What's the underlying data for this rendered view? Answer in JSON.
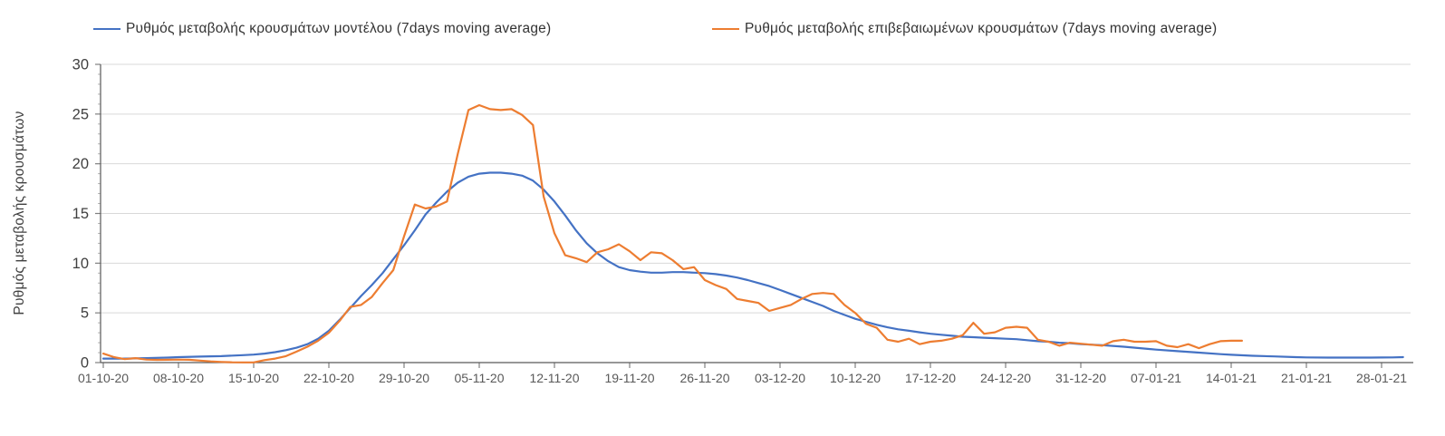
{
  "legend": {
    "items": [
      {
        "label": "Ρυθμός μεταβολής κρουσμάτων μοντέλου (7days moving average)",
        "color": "#4472C4"
      },
      {
        "label": "Ρυθμός μεταβολής επιβεβαιωμένων κρουσμάτων (7days moving average)",
        "color": "#ED7D31"
      }
    ]
  },
  "y_axis_title": "Ρυθμός μεταβολής κρουσμάτων",
  "colors": {
    "model_line": "#4472C4",
    "confirmed_line": "#ED7D31",
    "gridline": "#D9D9D9",
    "axis": "#595959",
    "tick": "#808080",
    "minor_tick": "#B3B3B3",
    "y_tick_label": "#404040",
    "x_tick_label": "#595959",
    "background": "#FFFFFF"
  },
  "chart_data": {
    "type": "line",
    "title": "",
    "xlabel": "",
    "ylabel": "Ρυθμός μεταβολής κρουσμάτων",
    "x_unit": "days since 01-10-20 (daily points, 7-day moving average)",
    "x_tick_days": [
      0,
      7,
      14,
      21,
      28,
      35,
      42,
      49,
      56,
      63,
      70,
      77,
      84,
      91,
      98,
      105,
      112,
      119
    ],
    "x_tick_labels": [
      "01-10-20",
      "08-10-20",
      "15-10-20",
      "22-10-20",
      "29-10-20",
      "05-11-20",
      "12-11-20",
      "19-11-20",
      "26-11-20",
      "03-12-20",
      "10-12-20",
      "17-12-20",
      "24-12-20",
      "31-12-20",
      "07-01-21",
      "14-01-21",
      "21-01-21",
      "28-01-21"
    ],
    "xlim_days": [
      0,
      122
    ],
    "ylim": [
      0,
      30
    ],
    "y_ticks": [
      0,
      5,
      10,
      15,
      20,
      25,
      30
    ],
    "y_minor_tick_step": 1,
    "grid": "horizontal-only",
    "legend_position": "top",
    "series": [
      {
        "name": "Ρυθμός μεταβολής κρουσμάτων μοντέλου (7days moving average)",
        "color": "#4472C4",
        "points": [
          [
            0,
            0.4
          ],
          [
            2,
            0.4
          ],
          [
            4,
            0.45
          ],
          [
            6,
            0.5
          ],
          [
            7,
            0.55
          ],
          [
            9,
            0.6
          ],
          [
            11,
            0.65
          ],
          [
            13,
            0.75
          ],
          [
            14,
            0.8
          ],
          [
            15,
            0.9
          ],
          [
            16,
            1.05
          ],
          [
            17,
            1.25
          ],
          [
            18,
            1.5
          ],
          [
            19,
            1.85
          ],
          [
            20,
            2.4
          ],
          [
            21,
            3.2
          ],
          [
            22,
            4.3
          ],
          [
            23,
            5.5
          ],
          [
            24,
            6.7
          ],
          [
            25,
            7.8
          ],
          [
            26,
            9.0
          ],
          [
            27,
            10.4
          ],
          [
            28,
            11.8
          ],
          [
            29,
            13.3
          ],
          [
            30,
            14.9
          ],
          [
            31,
            16.1
          ],
          [
            32,
            17.2
          ],
          [
            33,
            18.1
          ],
          [
            34,
            18.7
          ],
          [
            35,
            19.0
          ],
          [
            36,
            19.1
          ],
          [
            37,
            19.1
          ],
          [
            38,
            19.0
          ],
          [
            39,
            18.8
          ],
          [
            40,
            18.3
          ],
          [
            41,
            17.4
          ],
          [
            42,
            16.2
          ],
          [
            43,
            14.8
          ],
          [
            44,
            13.3
          ],
          [
            45,
            12.0
          ],
          [
            46,
            11.0
          ],
          [
            47,
            10.2
          ],
          [
            48,
            9.6
          ],
          [
            49,
            9.3
          ],
          [
            50,
            9.15
          ],
          [
            51,
            9.05
          ],
          [
            52,
            9.05
          ],
          [
            53,
            9.1
          ],
          [
            54,
            9.1
          ],
          [
            55,
            9.05
          ],
          [
            56,
            9.0
          ],
          [
            57,
            8.9
          ],
          [
            58,
            8.75
          ],
          [
            59,
            8.55
          ],
          [
            60,
            8.3
          ],
          [
            61,
            8.0
          ],
          [
            62,
            7.7
          ],
          [
            63,
            7.3
          ],
          [
            64,
            6.9
          ],
          [
            65,
            6.5
          ],
          [
            66,
            6.1
          ],
          [
            67,
            5.7
          ],
          [
            68,
            5.2
          ],
          [
            69,
            4.8
          ],
          [
            70,
            4.4
          ],
          [
            71,
            4.1
          ],
          [
            72,
            3.8
          ],
          [
            73,
            3.55
          ],
          [
            74,
            3.35
          ],
          [
            75,
            3.2
          ],
          [
            76,
            3.05
          ],
          [
            77,
            2.9
          ],
          [
            78,
            2.8
          ],
          [
            79,
            2.7
          ],
          [
            80,
            2.6
          ],
          [
            81,
            2.55
          ],
          [
            82,
            2.5
          ],
          [
            83,
            2.45
          ],
          [
            84,
            2.4
          ],
          [
            85,
            2.35
          ],
          [
            86,
            2.25
          ],
          [
            87,
            2.15
          ],
          [
            88,
            2.1
          ],
          [
            89,
            2.0
          ],
          [
            90,
            1.95
          ],
          [
            91,
            1.85
          ],
          [
            93,
            1.75
          ],
          [
            95,
            1.6
          ],
          [
            97,
            1.4
          ],
          [
            98,
            1.3
          ],
          [
            100,
            1.15
          ],
          [
            102,
            1.0
          ],
          [
            104,
            0.85
          ],
          [
            105,
            0.78
          ],
          [
            107,
            0.68
          ],
          [
            109,
            0.62
          ],
          [
            111,
            0.55
          ],
          [
            112,
            0.52
          ],
          [
            114,
            0.5
          ],
          [
            116,
            0.5
          ],
          [
            118,
            0.5
          ],
          [
            120,
            0.52
          ],
          [
            121,
            0.55
          ]
        ]
      },
      {
        "name": "Ρυθμός μεταβολής επιβεβαιωμένων κρουσμάτων (7days moving average)",
        "color": "#ED7D31",
        "points": [
          [
            0,
            0.9
          ],
          [
            1,
            0.55
          ],
          [
            2,
            0.35
          ],
          [
            3,
            0.45
          ],
          [
            4,
            0.3
          ],
          [
            5,
            0.27
          ],
          [
            6,
            0.28
          ],
          [
            7,
            0.3
          ],
          [
            8,
            0.28
          ],
          [
            9,
            0.2
          ],
          [
            10,
            0.12
          ],
          [
            11,
            0.06
          ],
          [
            12,
            0.03
          ],
          [
            13,
            0.02
          ],
          [
            14,
            0.02
          ],
          [
            15,
            0.25
          ],
          [
            16,
            0.4
          ],
          [
            17,
            0.65
          ],
          [
            18,
            1.1
          ],
          [
            19,
            1.6
          ],
          [
            20,
            2.2
          ],
          [
            21,
            3.0
          ],
          [
            22,
            4.2
          ],
          [
            23,
            5.6
          ],
          [
            24,
            5.8
          ],
          [
            25,
            6.6
          ],
          [
            26,
            8.0
          ],
          [
            27,
            9.3
          ],
          [
            28,
            12.7
          ],
          [
            29,
            15.9
          ],
          [
            30,
            15.5
          ],
          [
            31,
            15.7
          ],
          [
            32,
            16.2
          ],
          [
            33,
            21.0
          ],
          [
            34,
            25.4
          ],
          [
            35,
            25.9
          ],
          [
            36,
            25.5
          ],
          [
            37,
            25.4
          ],
          [
            38,
            25.5
          ],
          [
            39,
            24.9
          ],
          [
            40,
            23.9
          ],
          [
            41,
            16.7
          ],
          [
            42,
            13.0
          ],
          [
            43,
            10.8
          ],
          [
            44,
            10.5
          ],
          [
            45,
            10.1
          ],
          [
            46,
            11.1
          ],
          [
            47,
            11.4
          ],
          [
            48,
            11.9
          ],
          [
            49,
            11.2
          ],
          [
            50,
            10.3
          ],
          [
            51,
            11.1
          ],
          [
            52,
            11.0
          ],
          [
            53,
            10.3
          ],
          [
            54,
            9.4
          ],
          [
            55,
            9.6
          ],
          [
            56,
            8.3
          ],
          [
            57,
            7.8
          ],
          [
            58,
            7.4
          ],
          [
            59,
            6.4
          ],
          [
            60,
            6.2
          ],
          [
            61,
            6.0
          ],
          [
            62,
            5.2
          ],
          [
            63,
            5.5
          ],
          [
            64,
            5.8
          ],
          [
            65,
            6.4
          ],
          [
            66,
            6.9
          ],
          [
            67,
            7.0
          ],
          [
            68,
            6.9
          ],
          [
            69,
            5.8
          ],
          [
            70,
            5.0
          ],
          [
            71,
            3.9
          ],
          [
            72,
            3.5
          ],
          [
            73,
            2.3
          ],
          [
            74,
            2.1
          ],
          [
            75,
            2.4
          ],
          [
            76,
            1.85
          ],
          [
            77,
            2.1
          ],
          [
            78,
            2.2
          ],
          [
            79,
            2.4
          ],
          [
            80,
            2.75
          ],
          [
            81,
            4.0
          ],
          [
            82,
            2.9
          ],
          [
            83,
            3.05
          ],
          [
            84,
            3.5
          ],
          [
            85,
            3.6
          ],
          [
            86,
            3.5
          ],
          [
            87,
            2.3
          ],
          [
            88,
            2.1
          ],
          [
            89,
            1.7
          ],
          [
            90,
            2.0
          ],
          [
            91,
            1.9
          ],
          [
            92,
            1.8
          ],
          [
            93,
            1.7
          ],
          [
            94,
            2.15
          ],
          [
            95,
            2.3
          ],
          [
            96,
            2.1
          ],
          [
            97,
            2.1
          ],
          [
            98,
            2.15
          ],
          [
            99,
            1.7
          ],
          [
            100,
            1.55
          ],
          [
            101,
            1.85
          ],
          [
            102,
            1.45
          ],
          [
            103,
            1.85
          ],
          [
            104,
            2.15
          ],
          [
            105,
            2.2
          ],
          [
            106,
            2.2
          ]
        ]
      }
    ]
  }
}
